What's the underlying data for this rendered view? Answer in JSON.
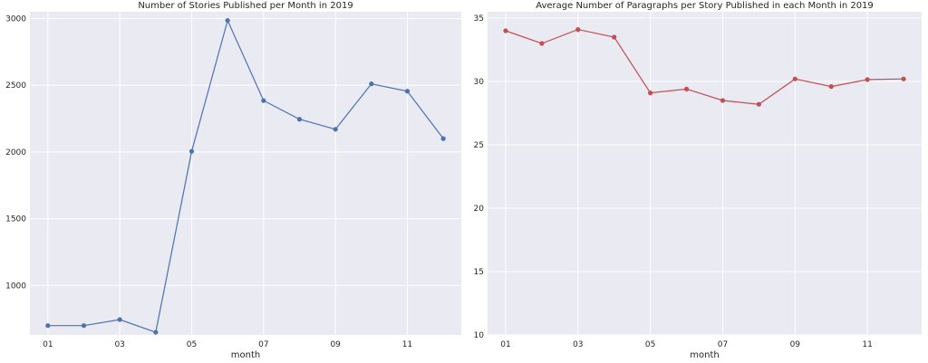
{
  "chart_data": [
    {
      "type": "line",
      "title": "Number of Stories Published per Month in 2019",
      "xlabel": "month",
      "ylabel": "",
      "x": [
        "01",
        "02",
        "03",
        "04",
        "05",
        "06",
        "07",
        "08",
        "09",
        "10",
        "11",
        "12"
      ],
      "x_tick_labels": [
        "01",
        "03",
        "05",
        "07",
        "09",
        "11"
      ],
      "y_ticks": [
        1000,
        1500,
        2000,
        2500,
        3000
      ],
      "ylim": [
        630,
        3050
      ],
      "series": [
        {
          "values": [
            700,
            700,
            745,
            650,
            2005,
            2985,
            2385,
            2245,
            2170,
            2510,
            2455,
            2100
          ],
          "color": "#4c72b0"
        }
      ],
      "grid": true,
      "background": "#eaeaf2"
    },
    {
      "type": "line",
      "title": "Average Number of Paragraphs per Story Published in each Month in 2019",
      "xlabel": "month",
      "ylabel": "",
      "x": [
        "01",
        "02",
        "03",
        "04",
        "05",
        "06",
        "07",
        "08",
        "09",
        "10",
        "11",
        "12"
      ],
      "x_tick_labels": [
        "01",
        "03",
        "05",
        "07",
        "09",
        "11"
      ],
      "y_ticks": [
        10,
        15,
        20,
        25,
        30,
        35
      ],
      "ylim": [
        10,
        35.5
      ],
      "series": [
        {
          "values": [
            34.0,
            33.0,
            34.1,
            33.5,
            29.1,
            29.4,
            28.5,
            28.2,
            30.2,
            29.6,
            30.15,
            30.2
          ],
          "color": "#c44e52"
        }
      ],
      "grid": true,
      "background": "#eaeaf2"
    }
  ]
}
